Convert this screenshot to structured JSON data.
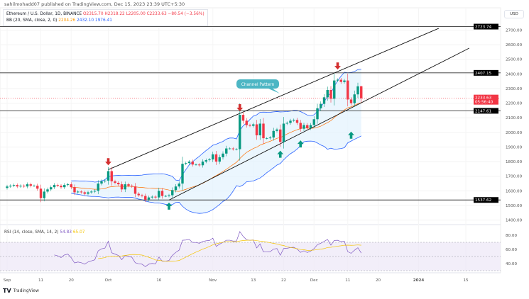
{
  "header": {
    "published": "sahilmohadd07 published on TradingView.com, Dec 15, 2023 23:39 UTC+5:30"
  },
  "legend": {
    "symbol": "Ethereum / U.S. Dollar, 1D, BINANCE",
    "o": "O2315.70",
    "h": "H2318.22",
    "l": "L2205.00",
    "c": "C2233.63",
    "chg": "−80.54 (−3.56%)",
    "bb_label": "BB (20, SMA, close, 2, 0)",
    "bb_basis": "2204.26",
    "bb_upper": "2432.10",
    "bb_lower": "1976.41"
  },
  "rsi_legend": {
    "label": "RSI (14, close, SMA, 14, 2)",
    "rsi": "54.83",
    "sma": "65.07"
  },
  "currency": "USD",
  "logo": "TradingView",
  "colors": {
    "up": "#089981",
    "down": "#f23645",
    "bb": "#2962ff",
    "basis": "#ff6d00",
    "rsi": "#7e57c2",
    "rsi_ma": "#f5c400",
    "band": "#e3f2fd"
  },
  "chart_data": {
    "type": "candlestick",
    "start_date": "2023-09-01",
    "close": [
      1630,
      1635,
      1640,
      1630,
      1635,
      1630,
      1645,
      1635,
      1635,
      1615,
      1550,
      1595,
      1610,
      1625,
      1640,
      1635,
      1625,
      1640,
      1645,
      1625,
      1590,
      1595,
      1590,
      1580,
      1590,
      1595,
      1600,
      1650,
      1665,
      1670,
      1735,
      1665,
      1655,
      1645,
      1610,
      1645,
      1635,
      1630,
      1580,
      1570,
      1565,
      1540,
      1555,
      1560,
      1555,
      1600,
      1565,
      1565,
      1570,
      1605,
      1630,
      1650,
      1785,
      1790,
      1800,
      1780,
      1780,
      1775,
      1800,
      1810,
      1815,
      1850,
      1800,
      1830,
      1855,
      1890,
      1890,
      1885,
      1885,
      2120,
      2080,
      2050,
      2045,
      2055,
      1980,
      2060,
      1960,
      1960,
      1965,
      2010,
      2020,
      1935,
      2060,
      2065,
      2080,
      2085,
      2065,
      2025,
      2050,
      2030,
      2050,
      2090,
      2165,
      2195,
      2240,
      2290,
      2230,
      2355,
      2360,
      2345,
      2355,
      2225,
      2200,
      2260,
      2315,
      2233.63
    ],
    "last_ohlc": {
      "open": 2315.7,
      "high": 2318.22,
      "low": 2205.0,
      "close": 2233.63
    },
    "y_ticks": [
      "2700.00",
      "2600.00",
      "2500.00",
      "2400.00",
      "2300.00",
      "2200.00",
      "2100.00",
      "2000.00",
      "1900.00",
      "1800.00",
      "1700.00",
      "1600.00",
      "1500.00",
      "1400.00"
    ],
    "x_ticks": [
      {
        "label": "Sep",
        "date": "2023-09-01"
      },
      {
        "label": "11",
        "date": "2023-09-11"
      },
      {
        "label": "20",
        "date": "2023-09-20"
      },
      {
        "label": "Oct",
        "date": "2023-10-01"
      },
      {
        "label": "16",
        "date": "2023-10-16"
      },
      {
        "label": "Nov",
        "date": "2023-11-01"
      },
      {
        "label": "13",
        "date": "2023-11-13"
      },
      {
        "label": "22",
        "date": "2023-11-22"
      },
      {
        "label": "Dec",
        "date": "2023-12-01"
      },
      {
        "label": "11",
        "date": "2023-12-11"
      },
      {
        "label": "20",
        "date": "2023-12-20"
      },
      {
        "label": "2024",
        "date": "2024-01-01"
      },
      {
        "label": "15",
        "date": "2024-01-15"
      }
    ],
    "levels": [
      {
        "price": 2723.74,
        "label": "2723.74"
      },
      {
        "price": 2407.15,
        "label": "2407.15"
      },
      {
        "price": 2147.61,
        "label": "2147.61"
      },
      {
        "price": 1537.62,
        "label": "1537.62"
      }
    ],
    "last_price": {
      "label": "2233.63",
      "countdown": "05:56:40"
    },
    "channel": {
      "upper": [
        [
          "2023-10-01",
          1745
        ],
        [
          "2024-01-07",
          2712
        ]
      ],
      "lower": [
        [
          "2023-10-19",
          1537
        ],
        [
          "2024-01-16",
          2576
        ]
      ]
    },
    "annotation": "Channel Pattern",
    "sell_arrows": [
      {
        "date": "2023-10-01",
        "price": 1770
      },
      {
        "date": "2023-11-09",
        "price": 2140
      },
      {
        "date": "2023-12-08",
        "price": 2425
      }
    ],
    "buy_arrows": [
      {
        "date": "2023-10-19",
        "price": 1525
      },
      {
        "date": "2023-11-21",
        "price": 1880
      },
      {
        "date": "2023-11-27",
        "price": 1950
      },
      {
        "date": "2023-12-12",
        "price": 2010
      }
    ],
    "rsi_ticks": [
      "80.00",
      "60.00",
      "40.00"
    ]
  }
}
